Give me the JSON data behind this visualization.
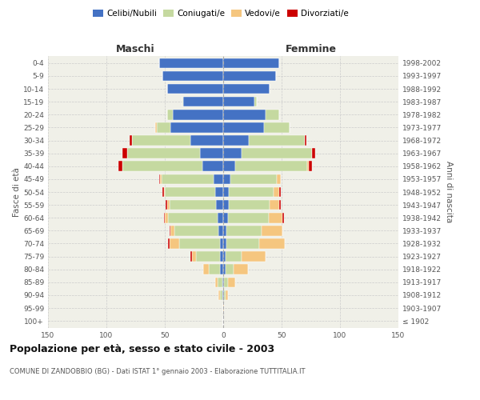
{
  "age_groups": [
    "100+",
    "95-99",
    "90-94",
    "85-89",
    "80-84",
    "75-79",
    "70-74",
    "65-69",
    "60-64",
    "55-59",
    "50-54",
    "45-49",
    "40-44",
    "35-39",
    "30-34",
    "25-29",
    "20-24",
    "15-19",
    "10-14",
    "5-9",
    "0-4"
  ],
  "birth_years": [
    "≤ 1902",
    "1903-1907",
    "1908-1912",
    "1913-1917",
    "1918-1922",
    "1923-1927",
    "1928-1932",
    "1933-1937",
    "1938-1942",
    "1943-1947",
    "1948-1952",
    "1953-1957",
    "1958-1962",
    "1963-1967",
    "1968-1972",
    "1973-1977",
    "1978-1982",
    "1983-1987",
    "1988-1992",
    "1993-1997",
    "1998-2002"
  ],
  "maschi": {
    "celibi": [
      0,
      0,
      1,
      1,
      3,
      3,
      3,
      4,
      5,
      6,
      7,
      8,
      18,
      20,
      28,
      45,
      43,
      34,
      48,
      52,
      55
    ],
    "coniugati": [
      0,
      0,
      2,
      4,
      9,
      20,
      35,
      38,
      42,
      40,
      43,
      45,
      68,
      62,
      50,
      12,
      5,
      1,
      0,
      0,
      0
    ],
    "vedovi": [
      0,
      0,
      1,
      2,
      5,
      4,
      8,
      3,
      3,
      2,
      1,
      1,
      0,
      0,
      0,
      1,
      0,
      0,
      0,
      0,
      0
    ],
    "divorziati": [
      0,
      0,
      0,
      0,
      0,
      1,
      1,
      1,
      1,
      1,
      1,
      1,
      4,
      4,
      2,
      0,
      0,
      0,
      0,
      0,
      0
    ]
  },
  "femmine": {
    "nubili": [
      0,
      0,
      1,
      1,
      2,
      2,
      3,
      3,
      4,
      5,
      5,
      6,
      10,
      16,
      22,
      35,
      36,
      27,
      40,
      45,
      48
    ],
    "coniugate": [
      0,
      0,
      1,
      3,
      7,
      14,
      28,
      30,
      35,
      35,
      38,
      40,
      62,
      60,
      48,
      22,
      12,
      2,
      0,
      0,
      0
    ],
    "vedove": [
      0,
      1,
      2,
      6,
      12,
      20,
      22,
      18,
      12,
      8,
      5,
      3,
      1,
      0,
      0,
      0,
      0,
      0,
      0,
      0,
      0
    ],
    "divorziate": [
      0,
      0,
      0,
      0,
      0,
      0,
      0,
      0,
      1,
      1,
      1,
      0,
      3,
      3,
      1,
      0,
      0,
      0,
      0,
      0,
      0
    ]
  },
  "color_celibi": "#4472c4",
  "color_coniugati": "#c5d9a0",
  "color_vedovi": "#f5c67f",
  "color_divorziati": "#cc0000",
  "title": "Popolazione per età, sesso e stato civile - 2003",
  "subtitle": "COMUNE DI ZANDOBBIO (BG) - Dati ISTAT 1° gennaio 2003 - Elaborazione TUTTITALIA.IT",
  "xlabel_left": "Maschi",
  "xlabel_right": "Femmine",
  "ylabel_left": "Fasce di età",
  "ylabel_right": "Anni di nascita",
  "xlim": 150,
  "bg_color": "#ffffff",
  "plot_bg": "#f0f0e8",
  "grid_color": "#cccccc"
}
